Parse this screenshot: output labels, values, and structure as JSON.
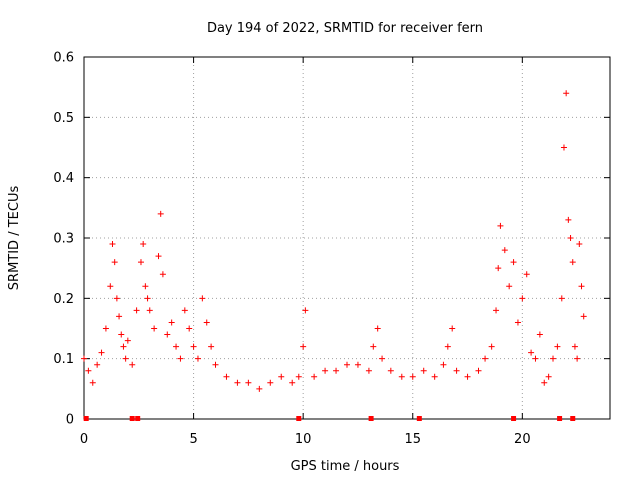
{
  "chart_data": {
    "type": "scatter",
    "title": "Day 194 of 2022, SRMTID for receiver fern",
    "xlabel": "GPS time / hours",
    "ylabel": "SRMTID / TECUs",
    "xlim": [
      0,
      24
    ],
    "ylim": [
      0,
      0.6
    ],
    "x_ticks": [
      0,
      5,
      10,
      15,
      20
    ],
    "x_tick_labels": [
      "0",
      "5",
      "10",
      "15",
      "20"
    ],
    "y_ticks": [
      0,
      0.1,
      0.2,
      0.3,
      0.4,
      0.5,
      0.6
    ],
    "y_tick_labels": [
      "0",
      "0.1",
      "0.2",
      "0.3",
      "0.4",
      "0.5",
      "0.6"
    ],
    "grid": true,
    "marker": "+",
    "color": "#ff0000",
    "series": [
      {
        "name": "SRMTID",
        "x": [
          0.0,
          0.2,
          0.4,
          0.6,
          0.8,
          1.0,
          1.2,
          1.3,
          1.4,
          1.5,
          1.6,
          1.7,
          1.8,
          1.9,
          2.0,
          2.2,
          2.4,
          2.6,
          2.7,
          2.8,
          2.9,
          3.0,
          3.2,
          3.4,
          3.5,
          3.6,
          3.8,
          4.0,
          4.2,
          4.4,
          4.6,
          4.8,
          5.0,
          5.2,
          5.4,
          5.6,
          5.8,
          6.0,
          6.5,
          7.0,
          7.5,
          8.0,
          8.5,
          9.0,
          9.5,
          9.8,
          10.0,
          10.1,
          10.5,
          11.0,
          11.5,
          12.0,
          12.5,
          13.0,
          13.2,
          13.4,
          13.6,
          14.0,
          14.5,
          15.0,
          15.5,
          16.0,
          16.4,
          16.6,
          16.8,
          17.0,
          17.5,
          18.0,
          18.3,
          18.6,
          18.8,
          18.9,
          19.0,
          19.2,
          19.4,
          19.6,
          19.8,
          20.0,
          20.2,
          20.4,
          20.6,
          20.8,
          21.0,
          21.2,
          21.4,
          21.6,
          21.8,
          21.9,
          22.0,
          22.1,
          22.2,
          22.3,
          22.4,
          22.5,
          22.6,
          22.7,
          22.8
        ],
        "y": [
          0.1,
          0.08,
          0.06,
          0.09,
          0.11,
          0.15,
          0.22,
          0.29,
          0.26,
          0.2,
          0.17,
          0.14,
          0.12,
          0.1,
          0.13,
          0.09,
          0.18,
          0.26,
          0.29,
          0.22,
          0.2,
          0.18,
          0.15,
          0.27,
          0.34,
          0.24,
          0.14,
          0.16,
          0.12,
          0.1,
          0.18,
          0.15,
          0.12,
          0.1,
          0.2,
          0.16,
          0.12,
          0.09,
          0.07,
          0.06,
          0.06,
          0.05,
          0.06,
          0.07,
          0.06,
          0.07,
          0.12,
          0.18,
          0.07,
          0.08,
          0.08,
          0.09,
          0.09,
          0.08,
          0.12,
          0.15,
          0.1,
          0.08,
          0.07,
          0.07,
          0.08,
          0.07,
          0.09,
          0.12,
          0.15,
          0.08,
          0.07,
          0.08,
          0.1,
          0.12,
          0.18,
          0.25,
          0.32,
          0.28,
          0.22,
          0.26,
          0.16,
          0.2,
          0.24,
          0.11,
          0.1,
          0.14,
          0.06,
          0.07,
          0.1,
          0.12,
          0.2,
          0.45,
          0.54,
          0.33,
          0.3,
          0.26,
          0.12,
          0.1,
          0.29,
          0.22,
          0.17
        ]
      }
    ],
    "gap_markers_x": [
      0.1,
      2.2,
      2.45,
      9.8,
      13.1,
      15.3,
      19.6,
      21.7,
      22.3
    ]
  }
}
